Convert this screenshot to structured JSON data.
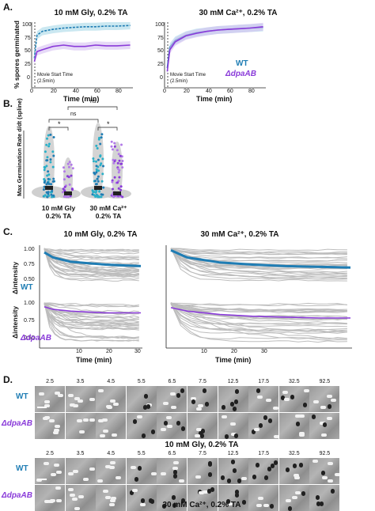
{
  "panel_a": {
    "label": "A.",
    "left_title": "10 mM Gly, 0.2% TA",
    "right_title": "30 mM Ca²⁺, 0.2% TA",
    "ylabel": "% spores germinated",
    "xlabel": "Time (min)",
    "yticks": [
      "0",
      "25",
      "50",
      "75",
      "100"
    ],
    "xticks": [
      "0",
      "20",
      "40",
      "60",
      "80"
    ],
    "annotation_line1": "Movie Start Time",
    "annotation_line2": "(2.5min)",
    "legend_wt": "WT",
    "legend_mut": "ΔdpaAB",
    "colors": {
      "wt": "#1f7db4",
      "wt_light": "#2ab0c8",
      "mut": "#8a3bd9"
    }
  },
  "chart_data": [
    {
      "type": "line",
      "title": "10 mM Gly, 0.2% TA",
      "xlabel": "Time (min)",
      "ylabel": "% spores germinated",
      "xlim": [
        0,
        95
      ],
      "ylim": [
        0,
        100
      ],
      "x": [
        2.5,
        5,
        10,
        20,
        30,
        40,
        50,
        60,
        70,
        80,
        92.5
      ],
      "series": [
        {
          "name": "WT",
          "values": [
            45,
            80,
            86,
            89,
            91,
            92,
            93,
            93,
            94,
            94,
            95
          ]
        },
        {
          "name": "ΔdpaAB",
          "values": [
            40,
            55,
            58,
            63,
            65,
            63,
            63,
            65,
            64,
            64,
            65
          ]
        }
      ]
    },
    {
      "type": "line",
      "title": "30 mM Ca²⁺, 0.2% TA",
      "xlabel": "Time (min)",
      "ylabel": "% spores germinated",
      "xlim": [
        0,
        95
      ],
      "ylim": [
        0,
        100
      ],
      "x": [
        2.5,
        5,
        10,
        20,
        30,
        40,
        50,
        60,
        70,
        80,
        92.5
      ],
      "series": [
        {
          "name": "WT",
          "values": [
            30,
            62,
            72,
            80,
            84,
            86,
            88,
            89,
            90,
            91,
            92
          ]
        },
        {
          "name": "ΔdpaAB",
          "values": [
            25,
            58,
            70,
            79,
            83,
            86,
            88,
            89,
            90,
            91,
            93
          ]
        }
      ]
    },
    {
      "type": "scatter",
      "title": "",
      "ylabel": "Max Germination Rate d/dt (spline)",
      "categories": [
        "10 mM Gly 0.2% TA",
        "30 mM Ca²⁺ 0.2% TA"
      ],
      "series": [
        {
          "name": "WT",
          "medians": [
            0.3,
            0.3
          ]
        },
        {
          "name": "ΔdpaAB",
          "medians": [
            0.15,
            0.15
          ]
        }
      ],
      "significance": [
        "*",
        "ns",
        "*",
        "ns"
      ]
    },
    {
      "type": "line",
      "title": "10 mM Gly, 0.2% TA",
      "xlabel": "Time (min)",
      "ylabel": "Δintensity",
      "ylim": [
        0.5,
        1.05
      ],
      "x": [
        2.5,
        5,
        10,
        15,
        20,
        25,
        30
      ],
      "series": [
        {
          "name": "WT",
          "values": [
            0.95,
            0.88,
            0.82,
            0.8,
            0.78,
            0.77,
            0.76
          ]
        },
        {
          "name": "ΔdpaAB",
          "values": [
            0.96,
            0.93,
            0.91,
            0.9,
            0.89,
            0.89,
            0.89
          ]
        }
      ]
    },
    {
      "type": "line",
      "title": "30 mM Ca²⁺, 0.2% TA",
      "xlabel": "Time (min)",
      "ylabel": "Δintensity",
      "ylim": [
        0.5,
        1.05
      ],
      "x": [
        2.5,
        5,
        10,
        15,
        20,
        25,
        30
      ],
      "series": [
        {
          "name": "WT",
          "values": [
            0.98,
            0.88,
            0.81,
            0.78,
            0.76,
            0.75,
            0.74
          ]
        },
        {
          "name": "ΔdpaAB",
          "values": [
            0.95,
            0.91,
            0.87,
            0.85,
            0.84,
            0.83,
            0.83
          ]
        }
      ]
    }
  ],
  "panel_b": {
    "label": "B.",
    "ylabel": "Max Germination Rate",
    "ylabel_suffix": "d/dt (spline)",
    "group1_line1": "10 mM Gly",
    "group1_line2": "0.2% TA",
    "group2_line1": "30 mM Ca²⁺",
    "group2_line2": "0.2% TA",
    "sig1": "*",
    "sig2": "ns",
    "sig3": "*",
    "sig4": "ns"
  },
  "panel_c": {
    "label": "C.",
    "left_title": "10 mM Gly, 0.2% TA",
    "right_title": "30 mM Ca²⁺, 0.2% TA",
    "ylabel": "Δintensity",
    "xlabel": "Time (min)",
    "yticks_top": [
      "1.00",
      "0.75",
      "0.50"
    ],
    "yticks_bottom": [
      "1.00",
      "0.75",
      "0.50"
    ],
    "xticks": [
      "10",
      "20",
      "30"
    ],
    "legend_wt": "WT",
    "legend_mut": "ΔdpaAB"
  },
  "panel_d": {
    "label": "D.",
    "timepoints": [
      "2.5",
      "3.5",
      "4.5",
      "5.5",
      "6.5",
      "7.5",
      "12.5",
      "17.5",
      "32.5",
      "92.5"
    ],
    "row_wt": "WT",
    "row_mut": "ΔdpaAB",
    "caption_top": "10 mM Gly, 0.2% TA",
    "caption_bottom": "30 mM Ca²⁺, 0.2% TA"
  }
}
